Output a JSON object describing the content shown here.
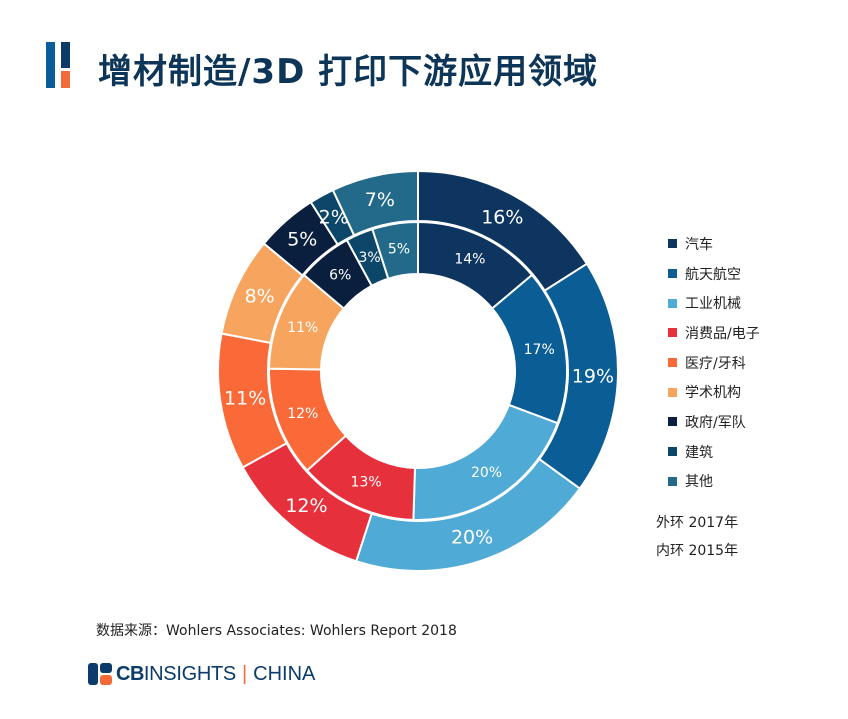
{
  "title": "增材制造/3D 打印下游应用领域",
  "chart_data": {
    "type": "pie",
    "variant": "double-donut",
    "title": "增材制造/3D 打印下游应用领域",
    "categories": [
      "汽车",
      "航天航空",
      "工业机械",
      "消费品/电子",
      "医疗/牙科",
      "学术机构",
      "政府/军队",
      "建筑",
      "其他"
    ],
    "colors": [
      "#0d3560",
      "#0b5d96",
      "#4faad6",
      "#e6303c",
      "#fa6a38",
      "#f7a55e",
      "#0a1f3e",
      "#0c4668",
      "#236a8a"
    ],
    "series": [
      {
        "name": "外环  2017年",
        "ring": "outer",
        "values": [
          16,
          19,
          20,
          12,
          11,
          8,
          5,
          2,
          7
        ]
      },
      {
        "name": "内环  2015年",
        "ring": "inner",
        "values": [
          14,
          17,
          20,
          13,
          12,
          11,
          6,
          3,
          5
        ]
      }
    ],
    "legend": "right",
    "value_suffix": "%"
  },
  "notes": {
    "outer": "外环  2017年",
    "inner": "内环  2015年"
  },
  "source": "数据来源：Wohlers Associates: Wohlers Report 2018",
  "logo": {
    "cb": "CB",
    "insights": "INSIGHTS",
    "separator": "|",
    "china": "CHINA"
  }
}
